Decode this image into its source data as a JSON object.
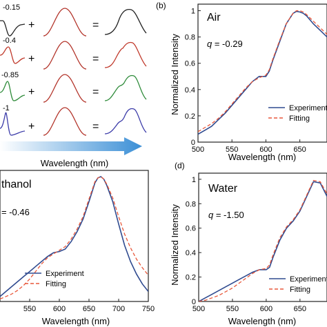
{
  "colors": {
    "experiment": "#2f4a8f",
    "fitting": "#e8573a",
    "black": "#222222",
    "red": "#c0392b",
    "green": "#2e8b3a",
    "blue": "#3a3aa8",
    "arrow": "#4aa3df"
  },
  "panel_a": {
    "q_values": [
      "-0.15",
      "-0.4",
      "-0.85",
      "-1"
    ],
    "operators": {
      "plus": "+",
      "equals": "="
    },
    "arrow_label": "Wavelength (nm)"
  },
  "chart_data": [
    {
      "id": "b",
      "type": "line",
      "panel_label": "(b)",
      "inset_title": "Air",
      "q_prefix": "q",
      "q_text": " = -0.29",
      "xlabel": "Wavelength (nm)",
      "ylabel": "Normalized Intensity",
      "xlim": [
        500,
        690
      ],
      "ylim": [
        0,
        1.05
      ],
      "xticks": [
        500,
        550,
        600,
        650
      ],
      "yticks": [
        0,
        0.2,
        0.4,
        0.6,
        0.8,
        1
      ],
      "ytick_labels": [
        "0",
        "0.2",
        "0.4",
        "0.6",
        "0.8",
        "1"
      ],
      "legend": [
        "Experiment",
        "Fitting"
      ],
      "series": [
        {
          "name": "Experiment",
          "x": [
            500,
            510,
            520,
            530,
            540,
            550,
            560,
            570,
            580,
            590,
            600,
            605,
            610,
            620,
            630,
            640,
            645,
            650,
            655,
            660,
            670,
            680,
            690
          ],
          "y": [
            0.06,
            0.09,
            0.12,
            0.17,
            0.22,
            0.28,
            0.34,
            0.4,
            0.46,
            0.5,
            0.5,
            0.54,
            0.62,
            0.76,
            0.9,
            0.98,
            0.995,
            0.99,
            0.98,
            0.96,
            0.9,
            0.85,
            0.8
          ]
        },
        {
          "name": "Fitting",
          "x": [
            500,
            510,
            520,
            530,
            540,
            550,
            560,
            570,
            580,
            590,
            600,
            605,
            610,
            620,
            630,
            640,
            645,
            650,
            655,
            660,
            670,
            680,
            690
          ],
          "y": [
            0.08,
            0.11,
            0.14,
            0.18,
            0.23,
            0.29,
            0.35,
            0.41,
            0.46,
            0.49,
            0.51,
            0.55,
            0.63,
            0.77,
            0.9,
            0.98,
            1.0,
            1.0,
            0.99,
            0.97,
            0.92,
            0.87,
            0.82
          ]
        }
      ]
    },
    {
      "id": "c",
      "type": "line",
      "inset_title": "thanol",
      "q_text": "= -0.46",
      "xlabel": "Wavelength (nm)",
      "xlim": [
        500,
        750
      ],
      "ylim": [
        0,
        1.05
      ],
      "xticks": [
        550,
        600,
        650,
        700,
        750
      ],
      "legend": [
        "Experiment",
        "Fitting"
      ],
      "series": [
        {
          "name": "Experiment",
          "x": [
            500,
            510,
            520,
            530,
            540,
            550,
            560,
            570,
            580,
            590,
            600,
            610,
            620,
            630,
            640,
            650,
            660,
            665,
            670,
            675,
            680,
            690,
            700,
            710,
            720,
            730,
            740,
            750
          ],
          "y": [
            0.04,
            0.08,
            0.12,
            0.16,
            0.2,
            0.24,
            0.28,
            0.32,
            0.36,
            0.39,
            0.4,
            0.42,
            0.48,
            0.56,
            0.66,
            0.8,
            0.95,
            0.99,
            1.0,
            0.98,
            0.93,
            0.8,
            0.62,
            0.45,
            0.32,
            0.22,
            0.14,
            0.08
          ]
        },
        {
          "name": "Fitting",
          "x": [
            500,
            510,
            520,
            530,
            540,
            550,
            560,
            570,
            580,
            590,
            600,
            610,
            620,
            630,
            640,
            650,
            660,
            665,
            670,
            675,
            680,
            690,
            700,
            710,
            720,
            730,
            740,
            750
          ],
          "y": [
            0.02,
            0.04,
            0.06,
            0.09,
            0.13,
            0.18,
            0.24,
            0.3,
            0.35,
            0.38,
            0.41,
            0.44,
            0.5,
            0.58,
            0.68,
            0.82,
            0.96,
            0.99,
            1.0,
            0.98,
            0.94,
            0.83,
            0.68,
            0.54,
            0.43,
            0.34,
            0.27,
            0.21
          ]
        }
      ]
    },
    {
      "id": "d",
      "type": "line",
      "panel_label": "(d)",
      "inset_title": "Water",
      "q_prefix": "q",
      "q_text": " = -1.50",
      "xlabel": "Wavelength (nm)",
      "ylabel": "Normalized Intensity",
      "xlim": [
        500,
        690
      ],
      "ylim": [
        0,
        1.05
      ],
      "xticks": [
        500,
        550,
        600,
        650
      ],
      "yticks": [
        0,
        0.2,
        0.4,
        0.6,
        0.8,
        1
      ],
      "ytick_labels": [
        "0",
        "0.2",
        "0.4",
        "0.6",
        "0.8",
        "1"
      ],
      "legend": [
        "Experiment",
        "Fitting"
      ],
      "series": [
        {
          "name": "Experiment",
          "x": [
            500,
            510,
            520,
            530,
            540,
            550,
            560,
            570,
            580,
            590,
            600,
            605,
            610,
            620,
            630,
            640,
            650,
            660,
            670,
            680,
            690
          ],
          "y": [
            0.0,
            0.03,
            0.06,
            0.09,
            0.12,
            0.15,
            0.18,
            0.21,
            0.24,
            0.26,
            0.26,
            0.28,
            0.36,
            0.5,
            0.6,
            0.66,
            0.74,
            0.86,
            0.98,
            0.97,
            0.86
          ]
        },
        {
          "name": "Fitting",
          "x": [
            500,
            510,
            520,
            530,
            540,
            550,
            560,
            570,
            580,
            590,
            600,
            605,
            610,
            620,
            630,
            640,
            650,
            660,
            670,
            680,
            690
          ],
          "y": [
            0.0,
            0.01,
            0.03,
            0.05,
            0.08,
            0.11,
            0.15,
            0.19,
            0.23,
            0.26,
            0.27,
            0.3,
            0.38,
            0.52,
            0.61,
            0.67,
            0.75,
            0.87,
            0.99,
            0.98,
            0.88
          ]
        }
      ]
    }
  ]
}
